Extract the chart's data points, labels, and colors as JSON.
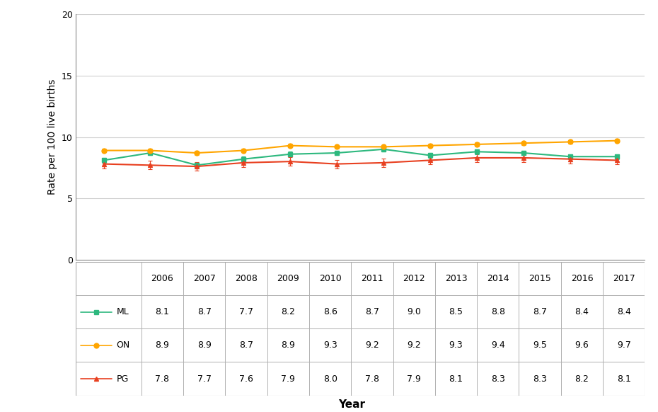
{
  "years": [
    2006,
    2007,
    2008,
    2009,
    2010,
    2011,
    2012,
    2013,
    2014,
    2015,
    2016,
    2017
  ],
  "ML": [
    8.1,
    8.7,
    7.7,
    8.2,
    8.6,
    8.7,
    9.0,
    8.5,
    8.8,
    8.7,
    8.4,
    8.4
  ],
  "ON": [
    8.9,
    8.9,
    8.7,
    8.9,
    9.3,
    9.2,
    9.2,
    9.3,
    9.4,
    9.5,
    9.6,
    9.7
  ],
  "PG": [
    7.8,
    7.7,
    7.6,
    7.9,
    8.0,
    7.8,
    7.9,
    8.1,
    8.3,
    8.3,
    8.2,
    8.1
  ],
  "ML_err": [
    0.2,
    0.2,
    0.2,
    0.2,
    0.2,
    0.2,
    0.2,
    0.2,
    0.2,
    0.2,
    0.2,
    0.2
  ],
  "ON_err": [
    0.15,
    0.15,
    0.15,
    0.15,
    0.15,
    0.15,
    0.15,
    0.15,
    0.15,
    0.15,
    0.15,
    0.15
  ],
  "PG_err": [
    0.35,
    0.35,
    0.35,
    0.35,
    0.35,
    0.35,
    0.35,
    0.35,
    0.35,
    0.35,
    0.35,
    0.35
  ],
  "ML_color": "#2db87e",
  "ON_color": "#ffa500",
  "PG_color": "#e84020",
  "ylabel": "Rate per 100 live births",
  "xlabel": "Year",
  "ylim": [
    0,
    20
  ],
  "yticks": [
    0,
    5,
    10,
    15,
    20
  ],
  "background_color": "#ffffff",
  "grid_color": "#d0d0d0",
  "table_border_color": "#aaaaaa"
}
